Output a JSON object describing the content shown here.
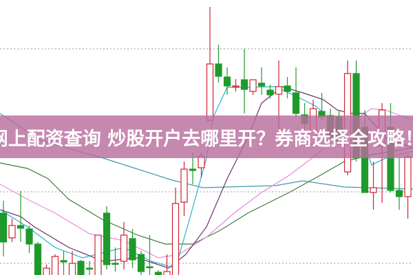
{
  "banner": {
    "title": "网上配资查询 炒股开户去哪里开？券商选择全攻略！"
  },
  "chart_data": {
    "type": "candlestick",
    "grid": "dotted horizontal",
    "ylim": [
      0,
      400
    ],
    "colors": {
      "up": "#d0202e",
      "down": "#1e9a2a",
      "ma_teal": "#3a9aa8",
      "ma_green": "#3f7a3a",
      "ma_pink": "#e58ae0",
      "ma_purple": "#6a2f6a",
      "ma_cyan": "#2ab0c8"
    },
    "gridlines": [
      329,
      121,
      17
    ],
    "candles": [
      [
        90,
        108,
        27,
        48
      ],
      [
        54,
        82,
        48,
        72
      ],
      [
        72,
        122,
        48,
        68
      ],
      [
        67,
        72,
        32,
        45
      ],
      [
        45,
        48,
        -10,
        -5
      ],
      [
        -5,
        15,
        -10,
        10
      ],
      [
        -5,
        30,
        -10,
        27
      ],
      [
        21,
        35,
        -5,
        19
      ],
      [
        -5,
        35,
        -10,
        17
      ],
      [
        20,
        22,
        -10,
        -5
      ],
      [
        10,
        20,
        -5,
        9
      ],
      [
        -5,
        58,
        -10,
        58
      ],
      [
        90,
        100,
        8,
        15
      ],
      [
        17,
        40,
        5,
        16
      ],
      [
        20,
        77,
        8,
        58
      ],
      [
        53,
        67,
        10,
        22
      ],
      [
        30,
        35,
        -5,
        5
      ],
      [
        12,
        58,
        -5,
        11
      ],
      [
        4,
        7,
        -10,
        -5
      ],
      [
        -5,
        30,
        -10,
        5
      ],
      [
        -5,
        127,
        -10,
        104
      ],
      [
        106,
        165,
        86,
        154
      ],
      [
        154,
        178,
        132,
        152
      ],
      [
        156,
        178,
        142,
        173
      ],
      [
        225,
        390,
        225,
        307
      ],
      [
        307,
        335,
        280,
        289
      ],
      [
        288,
        302,
        262,
        275
      ],
      [
        274,
        285,
        267,
        275
      ],
      [
        284,
        329,
        235,
        270
      ],
      [
        267,
        284,
        262,
        284
      ],
      [
        279,
        302,
        262,
        275
      ],
      [
        269,
        277,
        257,
        262
      ],
      [
        263,
        312,
        212,
        274
      ],
      [
        275,
        288,
        257,
        267
      ],
      [
        265,
        302,
        230,
        235
      ],
      [
        233,
        250,
        205,
        220
      ],
      [
        190,
        255,
        185,
        242
      ],
      [
        238,
        265,
        225,
        230
      ],
      [
        232,
        242,
        195,
        200
      ],
      [
        230,
        240,
        190,
        195
      ],
      [
        150,
        312,
        145,
        293
      ],
      [
        293,
        312,
        165,
        170
      ],
      [
        215,
        240,
        120,
        120
      ],
      [
        120,
        165,
        95,
        127
      ],
      [
        187,
        250,
        105,
        240
      ],
      [
        215,
        250,
        120,
        123
      ],
      [
        123,
        172,
        95,
        114
      ],
      [
        114,
        175,
        82,
        172
      ]
    ],
    "series": [
      {
        "color_key": "ma_teal",
        "points": [
          [
            -0.4,
            235
          ],
          [
            4.4,
            195
          ],
          [
            11.6,
            170
          ],
          [
            19.6,
            138
          ],
          [
            23.2,
            127
          ],
          [
            31.6,
            130
          ],
          [
            34.8,
            137
          ],
          [
            39.6,
            128
          ],
          [
            47.6,
            125
          ]
        ]
      },
      {
        "color_key": "ma_green",
        "points": [
          [
            -0.4,
            163
          ],
          [
            2.8,
            155
          ],
          [
            5.2,
            140
          ],
          [
            7.6,
            110
          ],
          [
            11.6,
            80
          ],
          [
            15.6,
            58
          ],
          [
            18.8,
            45
          ],
          [
            22,
            45
          ],
          [
            25.2,
            65
          ],
          [
            28.4,
            90
          ],
          [
            33.2,
            120
          ],
          [
            36.4,
            142
          ],
          [
            39.6,
            165
          ],
          [
            42.8,
            175
          ],
          [
            47.6,
            185
          ]
        ]
      },
      {
        "color_key": "ma_pink",
        "points": [
          [
            -0.4,
            132
          ],
          [
            2.8,
            110
          ],
          [
            6,
            90
          ],
          [
            10,
            60
          ],
          [
            14,
            50
          ],
          [
            18,
            25
          ],
          [
            20.4,
            30
          ],
          [
            23.6,
            55
          ],
          [
            26.8,
            90
          ],
          [
            30,
            120
          ],
          [
            33.2,
            145
          ],
          [
            36.4,
            175
          ],
          [
            39.6,
            215
          ],
          [
            42.8,
            242
          ],
          [
            44.4,
            240
          ],
          [
            47.6,
            225
          ]
        ]
      },
      {
        "color_key": "ma_purple",
        "points": [
          [
            -0.4,
            95
          ],
          [
            2,
            85
          ],
          [
            3.6,
            70
          ],
          [
            7.6,
            40
          ],
          [
            11.6,
            20
          ],
          [
            15.6,
            25
          ],
          [
            19.2,
            10
          ],
          [
            21.2,
            30
          ],
          [
            23.6,
            70
          ],
          [
            26,
            140
          ],
          [
            28.4,
            200
          ],
          [
            30,
            250
          ],
          [
            32.4,
            274
          ],
          [
            34.8,
            265
          ],
          [
            37.2,
            255
          ],
          [
            38.8,
            240
          ],
          [
            40.4,
            235
          ],
          [
            42,
            235
          ],
          [
            44.4,
            200
          ],
          [
            47.6,
            185
          ]
        ]
      },
      {
        "color_key": "ma_cyan",
        "points": [
          [
            -0.4,
            95
          ],
          [
            2.8,
            70
          ],
          [
            6,
            40
          ],
          [
            9.2,
            25
          ],
          [
            14,
            40
          ],
          [
            17.2,
            20
          ],
          [
            20,
            10
          ],
          [
            21.6,
            80
          ],
          [
            23.6,
            170
          ],
          [
            24.4,
            230
          ],
          [
            26,
            273
          ],
          [
            28.4,
            273
          ],
          [
            31.6,
            274
          ],
          [
            34,
            260
          ],
          [
            36.4,
            245
          ],
          [
            38,
            225
          ],
          [
            39.6,
            210
          ],
          [
            41.2,
            220
          ],
          [
            42.8,
            160
          ],
          [
            44.4,
            170
          ],
          [
            47.6,
            180
          ]
        ]
      }
    ]
  }
}
